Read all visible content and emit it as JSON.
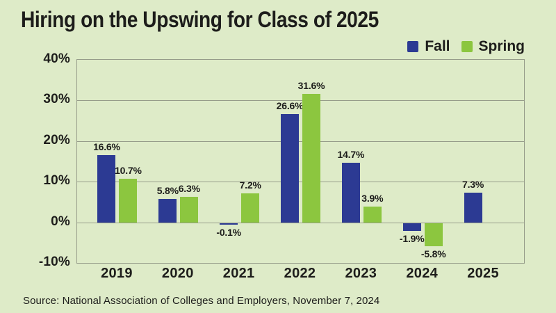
{
  "title": "Hiring on the Upswing for Class of 2025",
  "source": "Source: National Association of Colleges and Employers, November 7, 2024",
  "colors": {
    "fall": "#2C3A93",
    "spring": "#8CC63F",
    "background": "#DEEBC8",
    "grid": "#969C8A",
    "text": "#1D1D1B"
  },
  "chart_data": {
    "type": "bar",
    "title": "Hiring on the Upswing for Class of 2025",
    "categories": [
      "2019",
      "2020",
      "2021",
      "2022",
      "2023",
      "2024",
      "2025"
    ],
    "series": [
      {
        "name": "Fall",
        "values": [
          16.6,
          5.8,
          -0.1,
          26.6,
          14.7,
          -1.9,
          7.3
        ]
      },
      {
        "name": "Spring",
        "values": [
          10.7,
          6.3,
          7.2,
          31.6,
          3.9,
          -5.8,
          null
        ]
      }
    ],
    "data_labels": {
      "Fall": [
        "16.6%",
        "5.8%",
        "-0.1%",
        "26.6%",
        "14.7%",
        "-1.9%",
        "7.3%"
      ],
      "Spring": [
        "10.7%",
        "6.3%",
        "7.2%",
        "31.6%",
        "3.9%",
        "-5.8%",
        null
      ]
    },
    "xlabel": "",
    "ylabel": "",
    "ylim": [
      -10,
      40
    ],
    "yticks": [
      40,
      30,
      20,
      10,
      0,
      -10
    ],
    "tick_format": "{v}%",
    "grid": true,
    "legend_position": "top-right"
  }
}
